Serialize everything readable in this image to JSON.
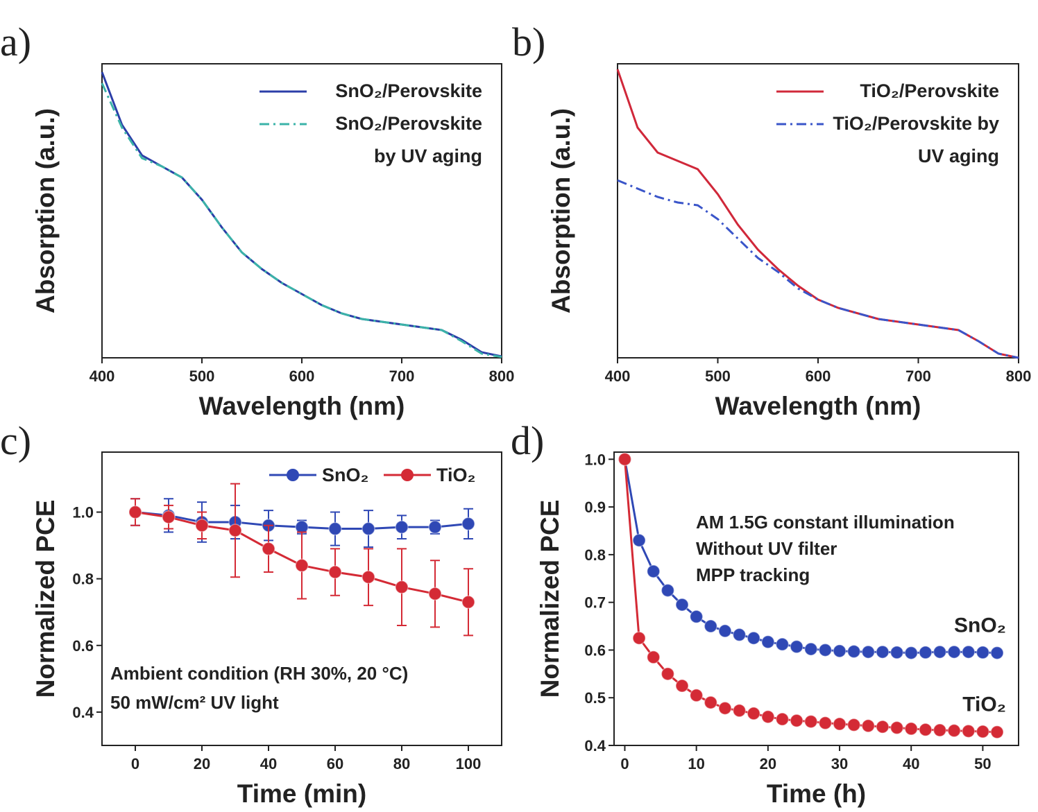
{
  "chart_data": [
    {
      "type": "line",
      "label": "a)",
      "xlabel": "Wavelength (nm)",
      "ylabel": "Absorption (a.u.)",
      "x": [
        400,
        420,
        440,
        460,
        480,
        500,
        520,
        540,
        560,
        580,
        600,
        620,
        640,
        660,
        680,
        700,
        720,
        740,
        760,
        780,
        800
      ],
      "xlim": [
        400,
        800
      ],
      "xticks": [
        400,
        500,
        600,
        700,
        800
      ],
      "ylim": [
        0,
        1.06
      ],
      "legend": "upper right",
      "series": [
        {
          "name": "SnO₂/Perovskite",
          "color": "#2b3ea8",
          "dash": "solid",
          "values": [
            1.03,
            0.84,
            0.73,
            0.69,
            0.65,
            0.57,
            0.47,
            0.38,
            0.32,
            0.27,
            0.23,
            0.19,
            0.16,
            0.14,
            0.13,
            0.12,
            0.11,
            0.1,
            0.065,
            0.02,
            0.005
          ]
        },
        {
          "name": "SnO₂/Perovskite by UV aging",
          "color": "#3bb3a8",
          "dash": "dashdot",
          "values": [
            0.99,
            0.83,
            0.72,
            0.69,
            0.65,
            0.57,
            0.47,
            0.38,
            0.32,
            0.27,
            0.23,
            0.19,
            0.16,
            0.14,
            0.13,
            0.12,
            0.11,
            0.1,
            0.06,
            0.015,
            0.003
          ]
        }
      ]
    },
    {
      "type": "line",
      "label": "b)",
      "xlabel": "Wavelength (nm)",
      "ylabel": "Absorption (a.u.)",
      "x": [
        400,
        420,
        440,
        460,
        480,
        500,
        520,
        540,
        560,
        580,
        600,
        620,
        640,
        660,
        680,
        700,
        720,
        740,
        760,
        780,
        800
      ],
      "xlim": [
        400,
        800
      ],
      "xticks": [
        400,
        500,
        600,
        700,
        800
      ],
      "ylim": [
        0,
        1.06
      ],
      "legend": "upper right",
      "series": [
        {
          "name": "TiO₂/Perovskite",
          "color": "#d0283a",
          "dash": "solid",
          "values": [
            1.04,
            0.83,
            0.74,
            0.71,
            0.68,
            0.59,
            0.48,
            0.39,
            0.32,
            0.26,
            0.21,
            0.18,
            0.16,
            0.14,
            0.13,
            0.12,
            0.11,
            0.1,
            0.06,
            0.015,
            0.0
          ]
        },
        {
          "name": "TiO₂/Perovskite by UV aging",
          "color": "#3a55c9",
          "dash": "dashdot",
          "values": [
            0.64,
            0.61,
            0.58,
            0.56,
            0.55,
            0.5,
            0.43,
            0.36,
            0.31,
            0.25,
            0.21,
            0.18,
            0.16,
            0.14,
            0.13,
            0.12,
            0.11,
            0.1,
            0.06,
            0.015,
            0.0
          ]
        }
      ]
    },
    {
      "type": "line",
      "label": "c)",
      "xlabel": "Time (min)",
      "ylabel": "Normalized PCE",
      "markers": true,
      "x": [
        0,
        10,
        20,
        30,
        40,
        50,
        60,
        70,
        80,
        90,
        100
      ],
      "xlim": [
        -10,
        110
      ],
      "xticks": [
        0,
        20,
        40,
        60,
        80,
        100
      ],
      "ylim": [
        0.3,
        1.18
      ],
      "yticks": [
        0.4,
        0.6,
        0.8,
        {
          "value": 1,
          "label": "1.0"
        }
      ],
      "legend": "top",
      "annotations": [
        "Ambient condition (RH 30%, 20 °C)",
        "50 mW/cm² UV light"
      ],
      "annotation_position": "lower left",
      "series": [
        {
          "name": "SnO₂",
          "color": "#2f48b5",
          "dash": "solid",
          "values": [
            1.0,
            0.99,
            0.97,
            0.97,
            0.96,
            0.955,
            0.95,
            0.95,
            0.955,
            0.955,
            0.965
          ],
          "errors": [
            0.04,
            0.05,
            0.06,
            0.05,
            0.045,
            0.02,
            0.05,
            0.055,
            0.035,
            0.02,
            0.045
          ]
        },
        {
          "name": "TiO₂",
          "color": "#d42a35",
          "dash": "solid",
          "values": [
            1.0,
            0.985,
            0.96,
            0.945,
            0.89,
            0.84,
            0.82,
            0.805,
            0.775,
            0.755,
            0.73
          ],
          "errors": [
            0.04,
            0.035,
            0.04,
            0.14,
            0.07,
            0.1,
            0.07,
            0.085,
            0.115,
            0.1,
            0.1
          ]
        }
      ]
    },
    {
      "type": "line",
      "label": "d)",
      "xlabel": "Time (h)",
      "ylabel": "Normalized PCE",
      "markers": true,
      "x": [
        0,
        2,
        4,
        6,
        8,
        10,
        12,
        14,
        16,
        18,
        20,
        22,
        24,
        26,
        28,
        30,
        32,
        34,
        36,
        38,
        40,
        42,
        44,
        46,
        48,
        50,
        52
      ],
      "xlim": [
        -1.5,
        55
      ],
      "xticks": [
        0,
        10,
        20,
        30,
        40,
        50
      ],
      "ylim": [
        0.4,
        1.015
      ],
      "yticks": [
        0.4,
        0.5,
        0.6,
        0.7,
        0.8,
        0.9,
        {
          "value": 1,
          "label": "1.0"
        }
      ],
      "legend": "curve end",
      "annotations": [
        "AM 1.5G constant illumination",
        "Without UV filter",
        "MPP tracking"
      ],
      "annotation_position": "upper right",
      "series": [
        {
          "name": "SnO₂",
          "color": "#2f48b5",
          "dash": "solid",
          "values": [
            1.0,
            0.83,
            0.765,
            0.725,
            0.695,
            0.67,
            0.65,
            0.64,
            0.632,
            0.625,
            0.617,
            0.612,
            0.607,
            0.602,
            0.6,
            0.598,
            0.597,
            0.596,
            0.596,
            0.595,
            0.594,
            0.595,
            0.596,
            0.596,
            0.596,
            0.595,
            0.594
          ]
        },
        {
          "name": "TiO₂",
          "color": "#d42a35",
          "dash": "solid",
          "values": [
            1.0,
            0.625,
            0.585,
            0.55,
            0.525,
            0.505,
            0.49,
            0.478,
            0.473,
            0.467,
            0.46,
            0.455,
            0.452,
            0.45,
            0.447,
            0.445,
            0.443,
            0.441,
            0.439,
            0.437,
            0.435,
            0.433,
            0.432,
            0.431,
            0.43,
            0.429,
            0.428
          ]
        }
      ]
    }
  ]
}
